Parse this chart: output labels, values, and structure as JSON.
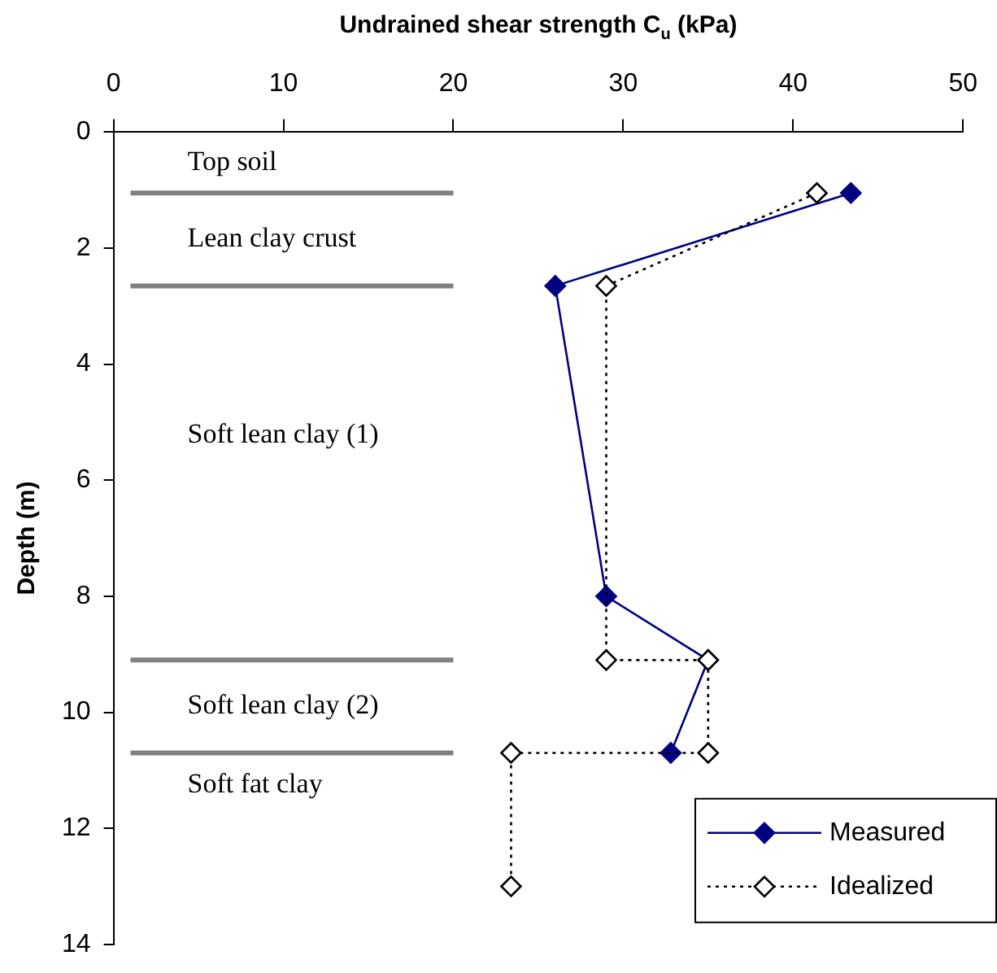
{
  "chart_data": {
    "type": "line",
    "xlabel": "Undrained shear strength C$_{u}$ (kPa)",
    "ylabel": "Depth (m)",
    "xlim": [
      0,
      50
    ],
    "xticks": [
      0,
      10,
      20,
      30,
      40,
      50
    ],
    "ylim": [
      14,
      0
    ],
    "yticks": [
      0,
      2,
      4,
      6,
      8,
      10,
      12,
      14
    ],
    "grid": false,
    "legend": "bottom right",
    "series": [
      {
        "x": [
          1,
          20
        ],
        "values": [
          1.05,
          1.05
        ],
        "color": "#808080",
        "marker": "none",
        "line_style": "solid"
      },
      {
        "x": [
          1,
          20
        ],
        "values": [
          2.65,
          2.65
        ],
        "color": "#808080",
        "marker": "none",
        "line_style": "solid"
      },
      {
        "x": [
          1,
          20
        ],
        "values": [
          9.1,
          9.1
        ],
        "color": "#808080",
        "marker": "none",
        "line_style": "solid"
      },
      {
        "x": [
          1,
          20
        ],
        "values": [
          10.7,
          10.7
        ],
        "color": "#808080",
        "marker": "none",
        "line_style": "solid"
      },
      {
        "name": "Measured",
        "x": [
          43.4,
          26,
          29,
          35,
          32.8
        ],
        "values": [
          1.05,
          2.65,
          8,
          9.1,
          10.7
        ],
        "color": "#000080",
        "marker": "diamond",
        "line_style": "solid"
      },
      {
        "name": "Idealized",
        "x": [
          41.4,
          29,
          29,
          35,
          35,
          23.4,
          23.4
        ],
        "values": [
          1.05,
          2.65,
          9.1,
          9.1,
          10.7,
          10.7,
          13
        ],
        "color": "#000000",
        "marker": "diamond",
        "line_style": "dotted"
      }
    ],
    "annotations": [
      "Top soil",
      "Lean clay crust",
      "Soft lean clay (1)",
      "Soft lean clay (2)",
      "Soft fat clay"
    ]
  }
}
